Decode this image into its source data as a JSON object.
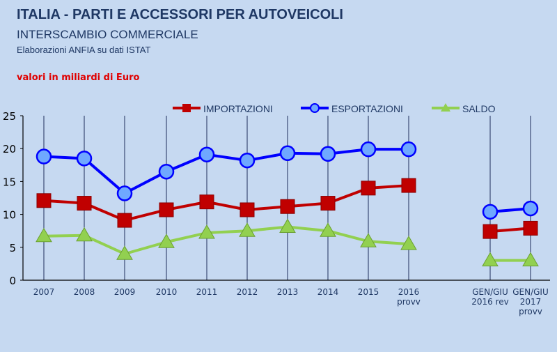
{
  "header": {
    "title": "ITALIA - PARTI E ACCESSORI PER AUTOVEICOLI",
    "subtitle": "INTERSCAMBIO COMMERCIALE",
    "source": "Elaborazioni ANFIA su dati ISTAT",
    "units": "valori in miliardi di Euro"
  },
  "chart_data": {
    "type": "line",
    "title": "ITALIA - PARTI E ACCESSORI PER AUTOVEICOLI",
    "xlabel": "",
    "ylabel": "",
    "ylim": [
      0,
      25
    ],
    "yticks": [
      0,
      5,
      10,
      15,
      20,
      25
    ],
    "grid": false,
    "legend": "top",
    "categories": [
      [
        "2007"
      ],
      [
        "2008"
      ],
      [
        "2009"
      ],
      [
        "2010"
      ],
      [
        "2011"
      ],
      [
        "2012"
      ],
      [
        "2013"
      ],
      [
        "2014"
      ],
      [
        "2015"
      ],
      [
        "2016",
        "provv"
      ],
      [
        "GEN/GIU",
        "2016 rev"
      ],
      [
        "GEN/GIU",
        "2017",
        "provv"
      ]
    ],
    "segments": [
      [
        0,
        9
      ],
      [
        10,
        11
      ]
    ],
    "series": [
      {
        "name": "IMPORTAZIONI",
        "color": "#c00000",
        "marker": "square",
        "values": [
          12.1,
          11.7,
          9.1,
          10.7,
          11.9,
          10.7,
          11.2,
          11.7,
          14.0,
          14.4,
          7.4,
          7.9
        ]
      },
      {
        "name": "ESPORTAZIONI",
        "color": "#0000ff",
        "marker": "circle",
        "values": [
          18.8,
          18.5,
          13.2,
          16.5,
          19.1,
          18.2,
          19.3,
          19.2,
          19.9,
          19.9,
          10.4,
          10.9
        ]
      },
      {
        "name": "SALDO",
        "color": "#92d050",
        "marker": "triangle",
        "values": [
          6.7,
          6.8,
          4.0,
          5.8,
          7.2,
          7.5,
          8.1,
          7.5,
          5.9,
          5.5,
          3.0,
          3.0
        ]
      }
    ]
  }
}
